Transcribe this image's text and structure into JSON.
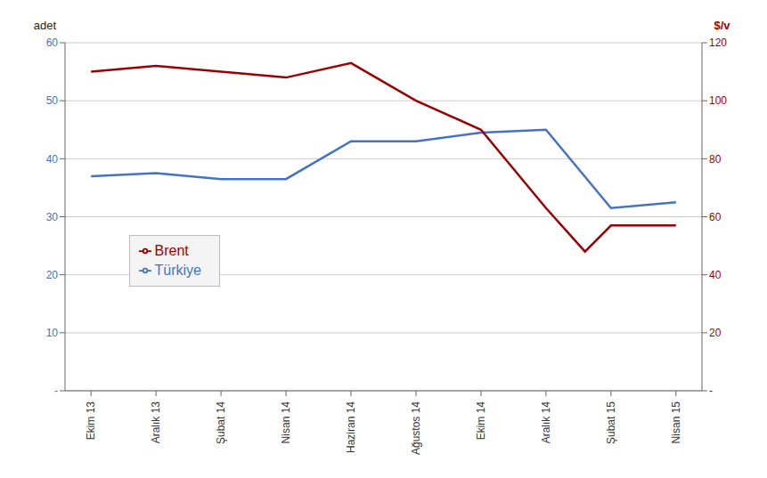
{
  "chart_data": {
    "type": "line",
    "xlim": [
      -0.4,
      9.4
    ],
    "xticks": [
      {
        "value": 0,
        "label": "Ekim 13"
      },
      {
        "value": 1,
        "label": "Aralık 13"
      },
      {
        "value": 2,
        "label": "Şubat 14"
      },
      {
        "value": 3,
        "label": "Nisan 14"
      },
      {
        "value": 4,
        "label": "Haziran 14"
      },
      {
        "value": 5,
        "label": "Ağustos 14"
      },
      {
        "value": 6,
        "label": "Ekim 14"
      },
      {
        "value": 7,
        "label": "Aralık 14"
      },
      {
        "value": 8,
        "label": "Şubat 15"
      },
      {
        "value": 9,
        "label": "Nisan 15"
      }
    ],
    "ylabel": "adet",
    "y2label": "$/v",
    "ylim": [
      0,
      60
    ],
    "yticks": [
      {
        "value": 0,
        "label": "-"
      },
      10,
      20,
      30,
      40,
      50,
      60
    ],
    "y2lim": [
      0,
      120
    ],
    "y2ticks": [
      {
        "value": 0,
        "label": "-"
      },
      20,
      40,
      60,
      80,
      100,
      120
    ],
    "grid": true,
    "legend": "lower left",
    "series": [
      {
        "name": "Türkiye",
        "color": "#4472c4",
        "x": [
          0,
          1,
          2,
          3,
          4,
          5,
          6,
          7,
          8,
          9
        ],
        "values": [
          37.0,
          37.5,
          36.5,
          36.5,
          43.0,
          43.0,
          44.5,
          45.0,
          31.5,
          32.5
        ]
      },
      {
        "name": "Brent",
        "color": "#9b0000",
        "axis": "y2",
        "x": [
          0,
          1,
          2,
          3,
          4,
          5,
          6,
          7,
          7.6,
          8,
          9
        ],
        "values": [
          110,
          112,
          110,
          108,
          113,
          100,
          90,
          63,
          48,
          57,
          57
        ]
      }
    ]
  }
}
